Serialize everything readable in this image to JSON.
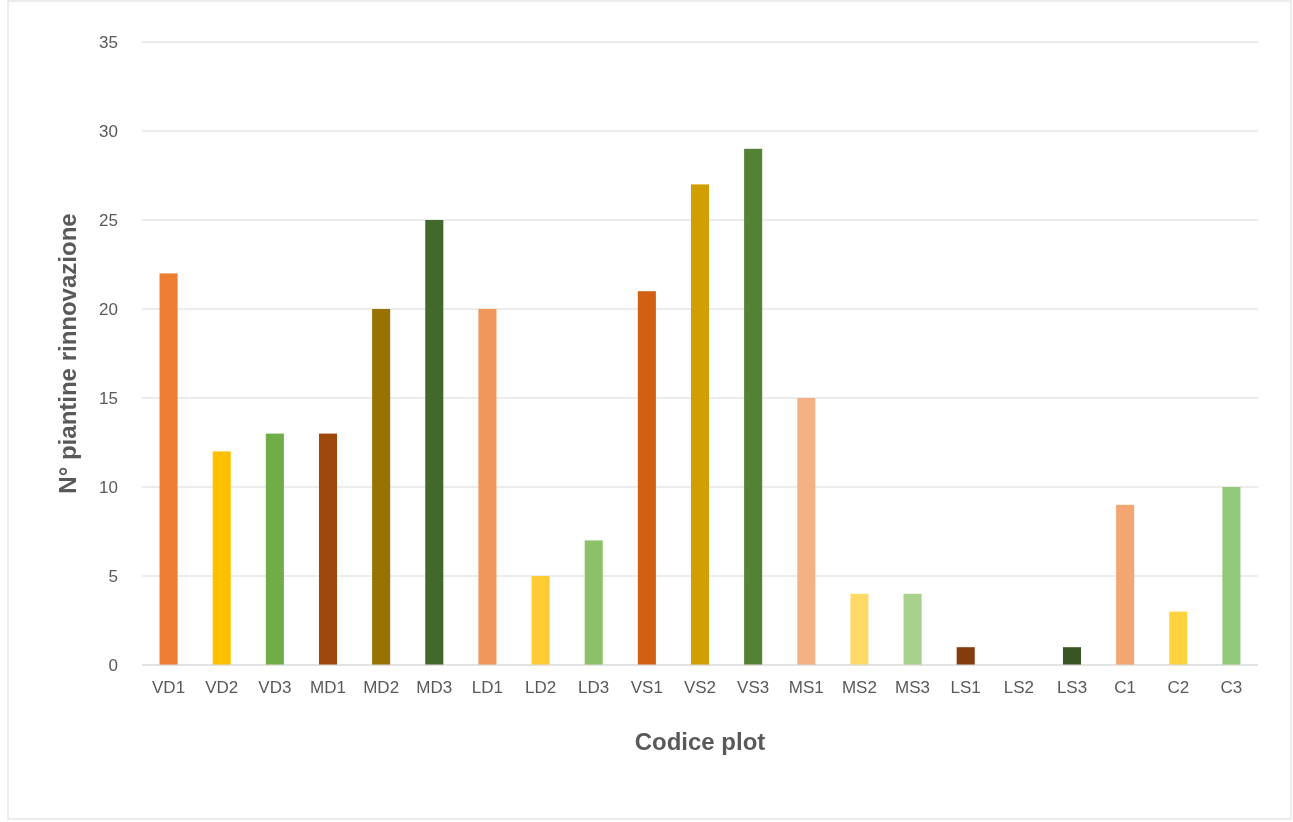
{
  "chart_data": {
    "type": "bar",
    "xlabel": "Codice plot",
    "ylabel": "N° piantine rinnovazione",
    "categories": [
      "VD1",
      "VD2",
      "VD3",
      "MD1",
      "MD2",
      "MD3",
      "LD1",
      "LD2",
      "LD3",
      "VS1",
      "VS2",
      "VS3",
      "MS1",
      "MS2",
      "MS3",
      "LS1",
      "LS2",
      "LS3",
      "C1",
      "C2",
      "C3"
    ],
    "values": [
      22,
      12,
      13,
      13,
      20,
      25,
      20,
      5,
      7,
      21,
      27,
      29,
      15,
      4,
      4,
      1,
      0,
      1,
      9,
      3,
      10
    ],
    "colors": [
      "#ed7d31",
      "#ffc000",
      "#70ad47",
      "#9e480e",
      "#997300",
      "#43682b",
      "#f1975a",
      "#ffcd33",
      "#8cc168",
      "#d26012",
      "#d29f00",
      "#548235",
      "#f4b183",
      "#ffd966",
      "#a9d18e",
      "#843c0c",
      "#bf9000",
      "#375623",
      "#f4a672",
      "#ffd23f",
      "#93c97a"
    ],
    "ylim": [
      0,
      35
    ],
    "yticks": [
      0,
      5,
      10,
      15,
      20,
      25,
      30,
      35
    ],
    "grid": "y"
  }
}
